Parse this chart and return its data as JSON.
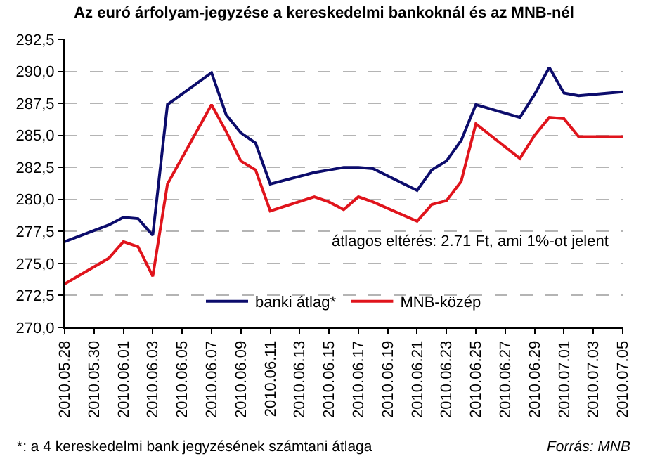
{
  "chart_data": {
    "type": "line",
    "title": "Az euró árfolyam-jegyzése a kereskedelmi bankoknál és az MNB-nél",
    "x": [
      "2010-05-28",
      "2010-05-31",
      "2010-06-01",
      "2010-06-02",
      "2010-06-03",
      "2010-06-04",
      "2010-06-07",
      "2010-06-08",
      "2010-06-09",
      "2010-06-10",
      "2010-06-11",
      "2010-06-14",
      "2010-06-15",
      "2010-06-16",
      "2010-06-17",
      "2010-06-18",
      "2010-06-21",
      "2010-06-22",
      "2010-06-23",
      "2010-06-24",
      "2010-06-25",
      "2010-06-28",
      "2010-06-29",
      "2010-06-30",
      "2010-07-01",
      "2010-07-02",
      "2010-07-05"
    ],
    "series": [
      {
        "name": "banki átlag*",
        "color": "#0c0c6c",
        "values": [
          276.7,
          278.0,
          278.6,
          278.5,
          277.2,
          287.4,
          289.9,
          286.6,
          285.2,
          284.4,
          281.2,
          282.1,
          282.3,
          282.5,
          282.5,
          282.4,
          280.7,
          282.3,
          283.0,
          284.6,
          287.4,
          286.4,
          288.2,
          290.3,
          288.3,
          288.1,
          288.4
        ]
      },
      {
        "name": "MNB-közép",
        "color": "#e0141c",
        "values": [
          273.4,
          275.4,
          276.7,
          276.3,
          274.0,
          281.2,
          287.4,
          285.3,
          283.0,
          282.3,
          279.1,
          280.2,
          279.8,
          279.2,
          280.2,
          279.8,
          278.3,
          279.6,
          279.9,
          281.4,
          285.9,
          283.2,
          285.0,
          286.4,
          286.3,
          284.9,
          284.9
        ]
      }
    ],
    "ylim": [
      270,
      292.5
    ],
    "yticks": [
      {
        "value": 270,
        "label": "270,0"
      },
      {
        "value": 272.5,
        "label": "272,5"
      },
      {
        "value": 275,
        "label": "275,0"
      },
      {
        "value": 277.5,
        "label": "277,5"
      },
      {
        "value": 280,
        "label": "280,0"
      },
      {
        "value": 282.5,
        "label": "282,5"
      },
      {
        "value": 285,
        "label": "285,0"
      },
      {
        "value": 287.5,
        "label": "287,5"
      },
      {
        "value": 290,
        "label": "290,0"
      },
      {
        "value": 292.5,
        "label": "292,5"
      }
    ],
    "xlim": [
      "2010-05-28",
      "2010-07-05"
    ],
    "xticks": [
      {
        "value": "2010-05-28",
        "label": "2010.05.28"
      },
      {
        "value": "2010-05-30",
        "label": "2010.05.30"
      },
      {
        "value": "2010-06-01",
        "label": "2010.06.01"
      },
      {
        "value": "2010-06-03",
        "label": "2010.06.03"
      },
      {
        "value": "2010-06-05",
        "label": "2010.06.05"
      },
      {
        "value": "2010-06-07",
        "label": "2010.06.07"
      },
      {
        "value": "2010-06-09",
        "label": "2010.06.09"
      },
      {
        "value": "2010-06-11",
        "label": "2010.06.11"
      },
      {
        "value": "2010-06-13",
        "label": "2010.06.13"
      },
      {
        "value": "2010-06-15",
        "label": "2010.06.15"
      },
      {
        "value": "2010-06-17",
        "label": "2010.06.17"
      },
      {
        "value": "2010-06-19",
        "label": "2010.06.19"
      },
      {
        "value": "2010-06-21",
        "label": "2010.06.21"
      },
      {
        "value": "2010-06-23",
        "label": "2010.06.23"
      },
      {
        "value": "2010-06-25",
        "label": "2010.06.25"
      },
      {
        "value": "2010-06-27",
        "label": "2010.06.27"
      },
      {
        "value": "2010-06-29",
        "label": "2010.06.29"
      },
      {
        "value": "2010-07-01",
        "label": "2010.07.01"
      },
      {
        "value": "2010-07-03",
        "label": "2010.07.03"
      },
      {
        "value": "2010-07-05",
        "label": "2010.07.05"
      }
    ],
    "grid": "y",
    "legend": "bottom",
    "marker": "none",
    "line_style": "solid",
    "annotations": [
      "átlagos eltérés: 2.71 Ft, ami 1%-ot jelent",
      "*: a 4 kereskedelmi bank jegyzésének számtani átlaga",
      "Forrás: MNB"
    ]
  }
}
